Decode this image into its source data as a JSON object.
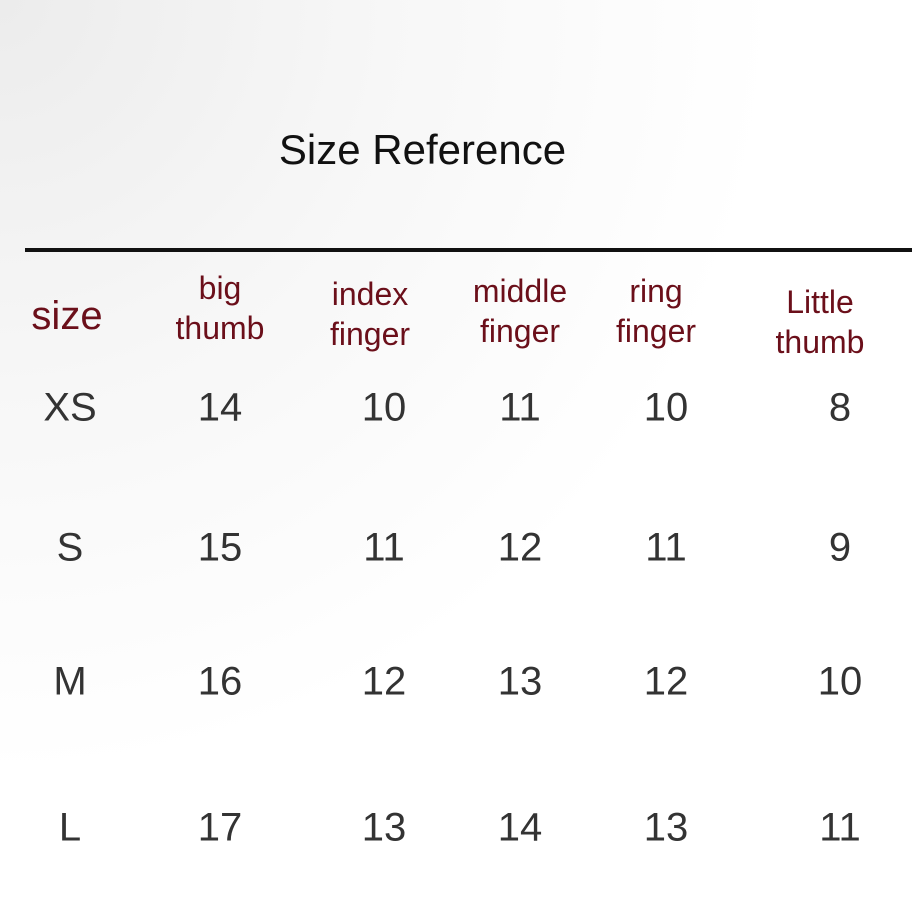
{
  "title": "Size Reference",
  "header_color": "#6b0f1a",
  "columns": [
    {
      "label": "size"
    },
    {
      "label_line1": "big",
      "label_line2": "thumb"
    },
    {
      "label_line1": "index",
      "label_line2": "finger"
    },
    {
      "label_line1": "middle",
      "label_line2": "finger"
    },
    {
      "label_line1": "ring",
      "label_line2": "finger"
    },
    {
      "label_line1": "Little",
      "label_line2": "thumb"
    }
  ],
  "rows": [
    {
      "size": "XS",
      "values": [
        "14",
        "10",
        "11",
        "10",
        "8"
      ]
    },
    {
      "size": "S",
      "values": [
        "15",
        "11",
        "12",
        "11",
        "9"
      ]
    },
    {
      "size": "M",
      "values": [
        "16",
        "12",
        "13",
        "12",
        "10"
      ]
    },
    {
      "size": "L",
      "values": [
        "17",
        "13",
        "14",
        "13",
        "11"
      ]
    }
  ]
}
